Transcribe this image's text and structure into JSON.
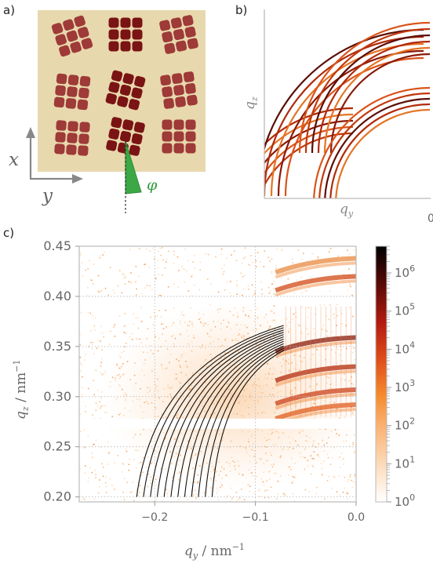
{
  "panel_labels": [
    "a)",
    "b)",
    "c)"
  ],
  "panel_a": {
    "axis_x_label": "x",
    "axis_y_label": "y",
    "angle_label": "φ",
    "colors": {
      "background": "#e8d8ad",
      "grain": "#9e3a38",
      "grain_dark": "#7a1414",
      "angle": "#2e9b3a",
      "axes": "#888888"
    }
  },
  "panel_b": {
    "xlabel": "q_y",
    "ylabel": "q_z",
    "x_tick": "0"
  },
  "chart_data": {
    "type": "heatmap",
    "xlabel": "q_y / nm^-1",
    "ylabel": "q_z / nm^-1",
    "xlim": [
      -0.275,
      0.0
    ],
    "ylim": [
      0.195,
      0.45
    ],
    "x_ticks": [
      -0.2,
      -0.1,
      0.0
    ],
    "y_ticks": [
      0.2,
      0.25,
      0.3,
      0.35,
      0.4,
      0.45
    ],
    "x_tick_labels": [
      "−0.2",
      "−0.1",
      "0.0"
    ],
    "y_tick_labels": [
      "0.20",
      "0.25",
      "0.30",
      "0.35",
      "0.40",
      "0.45"
    ],
    "grid": true,
    "colorbar": {
      "scale": "log",
      "range": [
        1,
        5000000
      ],
      "tick_exponents": [
        0,
        1,
        2,
        3,
        4,
        5,
        6
      ],
      "tick_base": "10"
    },
    "detector_gaps_qz": [
      [
        0.268,
        0.278
      ],
      [
        0.392,
        0.4
      ]
    ],
    "bragg_rods_qz": [
      0.359,
      0.33,
      0.307,
      0.292,
      0.42,
      0.438
    ],
    "overlay_arcs": {
      "count": 12,
      "qy_end": -0.072,
      "qz_end_range": [
        0.346,
        0.371
      ],
      "qy_start_range": [
        -0.218,
        -0.143
      ],
      "qz_start": 0.2
    }
  }
}
